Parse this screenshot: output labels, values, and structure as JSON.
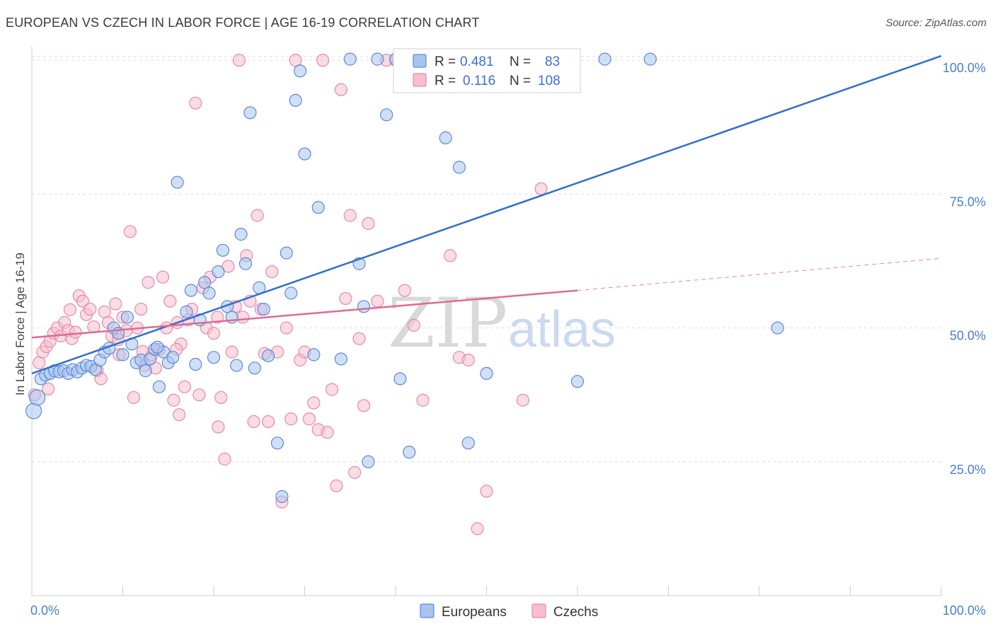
{
  "title": "EUROPEAN VS CZECH IN LABOR FORCE | AGE 16-19 CORRELATION CHART",
  "source": "Source: ZipAtlas.com",
  "watermark": {
    "zip": "ZIP",
    "atlas": "atlas"
  },
  "colors": {
    "european_fill": "#a9c4ee",
    "european_stroke": "#5b8ad6",
    "european_line": "#2f6fce",
    "czech_fill": "#f6bfd0",
    "czech_stroke": "#e58aa6",
    "czech_line": "#e06a92",
    "grid": "#dddddd",
    "tick_text": "#4a7fc8"
  },
  "legend": {
    "rows": [
      {
        "r_label": "R =",
        "r_value": "0.481",
        "n_label": "N =",
        "n_value": "83"
      },
      {
        "r_label": "R =",
        "r_value": "0.116",
        "n_label": "N =",
        "n_value": "108"
      }
    ]
  },
  "chart_data": {
    "type": "scatter",
    "title": "EUROPEAN VS CZECH IN LABOR FORCE | AGE 16-19 CORRELATION CHART",
    "xlabel": "",
    "ylabel": "In Labor Force | Age 16-19",
    "xlim": [
      0,
      100
    ],
    "ylim": [
      0,
      102
    ],
    "x_tick_labels": [
      "0.0%",
      "100.0%"
    ],
    "y_tick_labels": [
      "25.0%",
      "50.0%",
      "75.0%",
      "100.0%"
    ],
    "y_ticks": [
      25,
      50,
      75,
      100
    ],
    "grid": true,
    "legend_position": "top-center",
    "series": [
      {
        "name": "Europeans",
        "trend": {
          "x0": 0,
          "y0": 41.5,
          "x1": 100,
          "y1": 100.8
        },
        "points": [
          [
            0.2,
            34.5
          ],
          [
            0.6,
            37.0
          ],
          [
            1.0,
            40.5
          ],
          [
            1.5,
            41.2
          ],
          [
            2.0,
            41.5
          ],
          [
            2.5,
            42.0
          ],
          [
            3.0,
            41.8
          ],
          [
            3.5,
            42.0
          ],
          [
            4.0,
            41.5
          ],
          [
            4.5,
            42.2
          ],
          [
            5.0,
            41.8
          ],
          [
            5.5,
            42.5
          ],
          [
            6.0,
            43.0
          ],
          [
            6.5,
            42.8
          ],
          [
            7.0,
            42.2
          ],
          [
            7.5,
            44.0
          ],
          [
            8.0,
            45.5
          ],
          [
            8.5,
            46.2
          ],
          [
            9.0,
            50.0
          ],
          [
            9.5,
            49.0
          ],
          [
            10.0,
            45.0
          ],
          [
            10.5,
            52.0
          ],
          [
            11.0,
            47.0
          ],
          [
            11.5,
            43.5
          ],
          [
            12.0,
            44.0
          ],
          [
            12.5,
            42.0
          ],
          [
            13.0,
            44.2
          ],
          [
            13.5,
            46.0
          ],
          [
            14.0,
            39.0
          ],
          [
            14.5,
            45.5
          ],
          [
            15.0,
            43.5
          ],
          [
            15.5,
            44.5
          ],
          [
            16.0,
            77.2
          ],
          [
            17.0,
            53.0
          ],
          [
            17.5,
            57.0
          ],
          [
            18.0,
            43.2
          ],
          [
            18.5,
            51.5
          ],
          [
            19.0,
            58.5
          ],
          [
            19.5,
            56.5
          ],
          [
            20.0,
            44.5
          ],
          [
            20.5,
            60.5
          ],
          [
            21.0,
            64.5
          ],
          [
            21.5,
            54.0
          ],
          [
            22.5,
            43.0
          ],
          [
            23.0,
            67.5
          ],
          [
            23.5,
            62.0
          ],
          [
            24.0,
            90.2
          ],
          [
            24.5,
            42.5
          ],
          [
            25.0,
            57.5
          ],
          [
            25.5,
            53.5
          ],
          [
            26.0,
            44.8
          ],
          [
            27.0,
            28.5
          ],
          [
            27.5,
            18.5
          ],
          [
            28.0,
            64.0
          ],
          [
            28.5,
            56.5
          ],
          [
            29.0,
            92.5
          ],
          [
            29.5,
            98.0
          ],
          [
            30.0,
            82.5
          ],
          [
            31.0,
            45.0
          ],
          [
            31.5,
            72.5
          ],
          [
            34.0,
            44.2
          ],
          [
            35.0,
            100.2
          ],
          [
            36.0,
            62.0
          ],
          [
            36.5,
            54.0
          ],
          [
            37.0,
            25.0
          ],
          [
            38.0,
            100.2
          ],
          [
            39.0,
            89.8
          ],
          [
            40.0,
            100.2
          ],
          [
            40.5,
            40.5
          ],
          [
            41.5,
            26.8
          ],
          [
            44.5,
            100.2
          ],
          [
            45.5,
            85.5
          ],
          [
            47.0,
            80.0
          ],
          [
            48.0,
            28.5
          ],
          [
            50.0,
            41.5
          ],
          [
            53.0,
            100.2
          ],
          [
            55.0,
            100.2
          ],
          [
            60.0,
            40.0
          ],
          [
            63.0,
            100.2
          ],
          [
            68.0,
            100.2
          ],
          [
            82.0,
            50.0
          ],
          [
            22.0,
            52.0
          ],
          [
            13.8,
            46.4
          ]
        ]
      },
      {
        "name": "Czechs",
        "trend": {
          "x0": 0,
          "y0": 48.2,
          "x1": 60,
          "y1": 57.0,
          "dash_x1": 100,
          "dash_y1": 63.0
        },
        "points": [
          [
            0.3,
            37.5
          ],
          [
            0.8,
            43.5
          ],
          [
            1.2,
            45.5
          ],
          [
            1.6,
            46.5
          ],
          [
            2.0,
            47.5
          ],
          [
            2.4,
            49.0
          ],
          [
            2.8,
            50.0
          ],
          [
            3.2,
            48.5
          ],
          [
            3.6,
            51.0
          ],
          [
            4.0,
            49.5
          ],
          [
            4.4,
            48.0
          ],
          [
            4.8,
            49.2
          ],
          [
            5.2,
            56.0
          ],
          [
            5.6,
            55.0
          ],
          [
            6.0,
            52.5
          ],
          [
            6.4,
            53.5
          ],
          [
            6.8,
            50.2
          ],
          [
            7.2,
            42.0
          ],
          [
            7.6,
            40.5
          ],
          [
            8.0,
            53.0
          ],
          [
            8.4,
            51.0
          ],
          [
            8.8,
            48.5
          ],
          [
            9.2,
            54.5
          ],
          [
            9.6,
            45.0
          ],
          [
            10.0,
            52.0
          ],
          [
            10.4,
            49.5
          ],
          [
            10.8,
            68.0
          ],
          [
            11.2,
            37.0
          ],
          [
            11.6,
            50.0
          ],
          [
            12.0,
            53.5
          ],
          [
            12.4,
            43.0
          ],
          [
            12.8,
            58.5
          ],
          [
            13.2,
            45.0
          ],
          [
            13.6,
            42.5
          ],
          [
            14.0,
            46.0
          ],
          [
            14.4,
            59.5
          ],
          [
            14.8,
            50.0
          ],
          [
            15.2,
            55.0
          ],
          [
            15.6,
            36.5
          ],
          [
            16.0,
            51.0
          ],
          [
            16.4,
            47.0
          ],
          [
            16.8,
            39.0
          ],
          [
            17.2,
            51.5
          ],
          [
            17.6,
            53.5
          ],
          [
            18.0,
            92.0
          ],
          [
            18.4,
            37.5
          ],
          [
            18.8,
            57.5
          ],
          [
            19.2,
            50.0
          ],
          [
            19.6,
            59.5
          ],
          [
            20.0,
            49.0
          ],
          [
            20.4,
            52.0
          ],
          [
            20.8,
            37.0
          ],
          [
            21.2,
            25.5
          ],
          [
            21.6,
            61.5
          ],
          [
            22.0,
            45.5
          ],
          [
            22.4,
            54.0
          ],
          [
            22.8,
            100.0
          ],
          [
            23.2,
            52.0
          ],
          [
            23.6,
            63.5
          ],
          [
            24.0,
            55.0
          ],
          [
            24.4,
            32.5
          ],
          [
            24.8,
            71.0
          ],
          [
            25.2,
            53.5
          ],
          [
            25.6,
            45.2
          ],
          [
            26.0,
            32.5
          ],
          [
            26.4,
            60.5
          ],
          [
            27.0,
            45.5
          ],
          [
            27.5,
            17.5
          ],
          [
            28.0,
            50.0
          ],
          [
            28.5,
            33.0
          ],
          [
            29.0,
            100.0
          ],
          [
            29.5,
            44.0
          ],
          [
            30.0,
            45.5
          ],
          [
            30.5,
            33.0
          ],
          [
            31.0,
            36.0
          ],
          [
            31.5,
            31.0
          ],
          [
            32.0,
            100.0
          ],
          [
            32.5,
            30.5
          ],
          [
            33.0,
            38.5
          ],
          [
            33.5,
            20.5
          ],
          [
            34.0,
            94.5
          ],
          [
            34.5,
            55.5
          ],
          [
            35.0,
            71.0
          ],
          [
            35.5,
            23.0
          ],
          [
            36.0,
            48.0
          ],
          [
            36.5,
            35.5
          ],
          [
            37.0,
            69.5
          ],
          [
            38.0,
            55.0
          ],
          [
            39.0,
            100.0
          ],
          [
            40.0,
            100.0
          ],
          [
            41.0,
            57.0
          ],
          [
            42.0,
            50.5
          ],
          [
            43.0,
            36.5
          ],
          [
            46.0,
            63.5
          ],
          [
            47.0,
            44.5
          ],
          [
            48.0,
            44.0
          ],
          [
            49.0,
            12.5
          ],
          [
            50.0,
            19.5
          ],
          [
            54.0,
            36.5
          ],
          [
            56.0,
            76.0
          ],
          [
            58.0,
            100.0
          ],
          [
            20.5,
            31.5
          ],
          [
            15.9,
            46.0
          ],
          [
            12.2,
            45.6
          ],
          [
            4.2,
            53.4
          ],
          [
            9.5,
            47.8
          ],
          [
            1.8,
            38.6
          ],
          [
            16.2,
            33.8
          ]
        ]
      }
    ]
  }
}
